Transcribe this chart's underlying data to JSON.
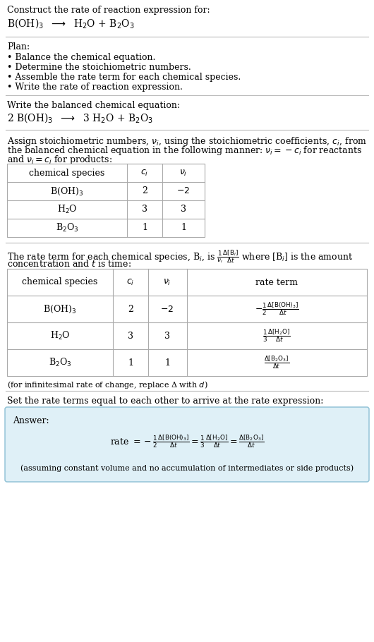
{
  "bg_color": "#ffffff",
  "text_color": "#000000",
  "section1_title": "Construct the rate of reaction expression for:",
  "section1_reaction": "B(OH)$_3$  $\\longrightarrow$  H$_2$O + B$_2$O$_3$",
  "plan_title": "Plan:",
  "plan_items": [
    "• Balance the chemical equation.",
    "• Determine the stoichiometric numbers.",
    "• Assemble the rate term for each chemical species.",
    "• Write the rate of reaction expression."
  ],
  "balanced_title": "Write the balanced chemical equation:",
  "balanced_eq": "2 B(OH)$_3$  $\\longrightarrow$  3 H$_2$O + B$_2$O$_3$",
  "assign_text1": "Assign stoichiometric numbers, $\\nu_i$, using the stoichiometric coefficients, $c_i$, from",
  "assign_text2": "the balanced chemical equation in the following manner: $\\nu_i = -c_i$ for reactants",
  "assign_text3": "and $\\nu_i = c_i$ for products:",
  "table1_headers": [
    "chemical species",
    "$c_i$",
    "$\\nu_i$"
  ],
  "table1_rows": [
    [
      "B(OH)$_3$",
      "2",
      "$-2$"
    ],
    [
      "H$_2$O",
      "3",
      "3"
    ],
    [
      "B$_2$O$_3$",
      "1",
      "1"
    ]
  ],
  "rate_text1": "The rate term for each chemical species, B$_i$, is $\\frac{1}{\\nu_i}\\frac{\\Delta[{\\rm B}_i]}{\\Delta t}$ where [B$_i$] is the amount",
  "rate_text2": "concentration and $t$ is time:",
  "table2_headers": [
    "chemical species",
    "$c_i$",
    "$\\nu_i$",
    "rate term"
  ],
  "table2_rows_col0": [
    "B(OH)$_3$",
    "H$_2$O",
    "B$_2$O$_3$"
  ],
  "table2_rows_col1": [
    "2",
    "3",
    "1"
  ],
  "table2_rows_col2": [
    "$-2$",
    "3",
    "1"
  ],
  "table2_rows_col3": [
    "$-\\frac{1}{2}\\frac{\\Delta[{\\rm B(OH)_3}]}{\\Delta t}$",
    "$\\frac{1}{3}\\frac{\\Delta[{\\rm H_2O}]}{\\Delta t}$",
    "$\\frac{\\Delta[{\\rm B_2O_3}]}{\\Delta t}$"
  ],
  "infinitesimal_note": "(for infinitesimal rate of change, replace Δ with $d$)",
  "set_text": "Set the rate terms equal to each other to arrive at the rate expression:",
  "answer_box_color": "#dff0f7",
  "answer_box_border": "#8bbfd4",
  "answer_label": "Answer:",
  "answer_eq": "rate $= -\\frac{1}{2}\\frac{\\Delta[{\\rm B(OH)_3}]}{\\Delta t} = \\frac{1}{3}\\frac{\\Delta[{\\rm H_2O}]}{\\Delta t} = \\frac{\\Delta[{\\rm B_2O_3}]}{\\Delta t}$",
  "answer_note": "(assuming constant volume and no accumulation of intermediates or side products)",
  "line_color": "#bbbbbb",
  "table_line_color": "#aaaaaa"
}
